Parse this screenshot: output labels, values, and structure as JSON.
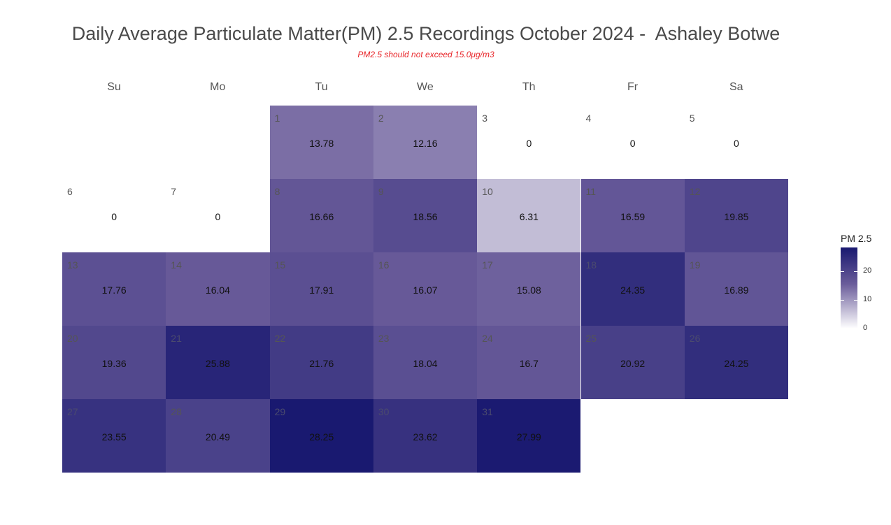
{
  "title": "Daily Average Particulate Matter(PM) 2.5 Recordings October 2024 -  Ashaley Botwe",
  "subtitle": "PM2.5 should not exceed 15.0μg/m3",
  "chart_data": {
    "type": "heatmap",
    "title": "Daily Average Particulate Matter(PM) 2.5 Recordings October 2024 -  Ashaley Botwe",
    "subtitle": "PM2.5 should not exceed 15.0μg/m3",
    "weekdays": [
      "Su",
      "Mo",
      "Tu",
      "We",
      "Th",
      "Fr",
      "Sa"
    ],
    "days": [
      {
        "day": 1,
        "weekday": 2,
        "week": 0,
        "value": 13.78
      },
      {
        "day": 2,
        "weekday": 3,
        "week": 0,
        "value": 12.16
      },
      {
        "day": 3,
        "weekday": 4,
        "week": 0,
        "value": 0
      },
      {
        "day": 4,
        "weekday": 5,
        "week": 0,
        "value": 0
      },
      {
        "day": 5,
        "weekday": 6,
        "week": 0,
        "value": 0
      },
      {
        "day": 6,
        "weekday": 0,
        "week": 1,
        "value": 0
      },
      {
        "day": 7,
        "weekday": 1,
        "week": 1,
        "value": 0
      },
      {
        "day": 8,
        "weekday": 2,
        "week": 1,
        "value": 16.66
      },
      {
        "day": 9,
        "weekday": 3,
        "week": 1,
        "value": 18.56
      },
      {
        "day": 10,
        "weekday": 4,
        "week": 1,
        "value": 6.31
      },
      {
        "day": 11,
        "weekday": 5,
        "week": 1,
        "value": 16.59
      },
      {
        "day": 12,
        "weekday": 6,
        "week": 1,
        "value": 19.85
      },
      {
        "day": 13,
        "weekday": 0,
        "week": 2,
        "value": 17.76
      },
      {
        "day": 14,
        "weekday": 1,
        "week": 2,
        "value": 16.04
      },
      {
        "day": 15,
        "weekday": 2,
        "week": 2,
        "value": 17.91
      },
      {
        "day": 16,
        "weekday": 3,
        "week": 2,
        "value": 16.07
      },
      {
        "day": 17,
        "weekday": 4,
        "week": 2,
        "value": 15.08
      },
      {
        "day": 18,
        "weekday": 5,
        "week": 2,
        "value": 24.35
      },
      {
        "day": 19,
        "weekday": 6,
        "week": 2,
        "value": 16.89
      },
      {
        "day": 20,
        "weekday": 0,
        "week": 3,
        "value": 19.36
      },
      {
        "day": 21,
        "weekday": 1,
        "week": 3,
        "value": 25.88
      },
      {
        "day": 22,
        "weekday": 2,
        "week": 3,
        "value": 21.76
      },
      {
        "day": 23,
        "weekday": 3,
        "week": 3,
        "value": 18.04
      },
      {
        "day": 24,
        "weekday": 4,
        "week": 3,
        "value": 16.7
      },
      {
        "day": 25,
        "weekday": 5,
        "week": 3,
        "value": 20.92
      },
      {
        "day": 26,
        "weekday": 6,
        "week": 3,
        "value": 24.25
      },
      {
        "day": 27,
        "weekday": 0,
        "week": 4,
        "value": 23.55
      },
      {
        "day": 28,
        "weekday": 1,
        "week": 4,
        "value": 20.49
      },
      {
        "day": 29,
        "weekday": 2,
        "week": 4,
        "value": 28.25
      },
      {
        "day": 30,
        "weekday": 3,
        "week": 4,
        "value": 23.62
      },
      {
        "day": 31,
        "weekday": 4,
        "week": 4,
        "value": 27.99
      }
    ],
    "legend": {
      "title": "PM 2.5",
      "ticks": [
        0,
        10,
        20
      ],
      "range": [
        0,
        28.25
      ],
      "placement": "right",
      "low_color": "#ffffff",
      "mid_color": "#6a5c9a",
      "high_color": "#191970"
    },
    "grid": false
  }
}
